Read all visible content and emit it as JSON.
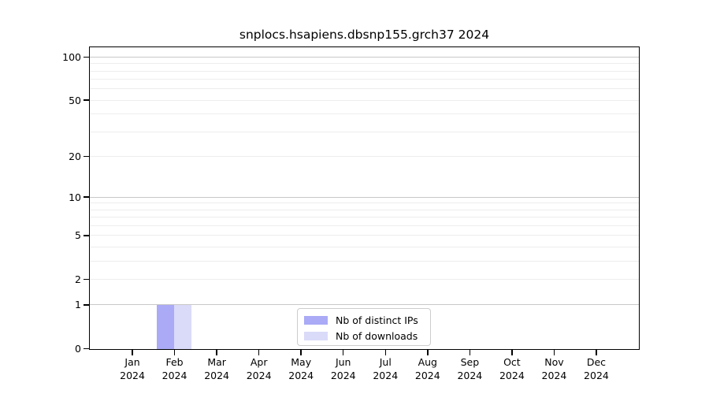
{
  "title": "snplocs.hsapiens.dbsnp155.grch37 2024",
  "chart_data": {
    "type": "bar",
    "title": "snplocs.hsapiens.dbsnp155.grch37 2024",
    "x_categories": [
      {
        "month": "Jan",
        "year": "2024"
      },
      {
        "month": "Feb",
        "year": "2024"
      },
      {
        "month": "Mar",
        "year": "2024"
      },
      {
        "month": "Apr",
        "year": "2024"
      },
      {
        "month": "May",
        "year": "2024"
      },
      {
        "month": "Jun",
        "year": "2024"
      },
      {
        "month": "Jul",
        "year": "2024"
      },
      {
        "month": "Aug",
        "year": "2024"
      },
      {
        "month": "Sep",
        "year": "2024"
      },
      {
        "month": "Oct",
        "year": "2024"
      },
      {
        "month": "Nov",
        "year": "2024"
      },
      {
        "month": "Dec",
        "year": "2024"
      }
    ],
    "series": [
      {
        "name": "Nb of distinct IPs",
        "color": "#aaaaf6",
        "values": [
          0,
          1,
          0,
          0,
          0,
          0,
          0,
          0,
          0,
          0,
          0,
          0
        ]
      },
      {
        "name": "Nb of downloads",
        "color": "#dadaf9",
        "values": [
          0,
          1,
          0,
          0,
          0,
          0,
          0,
          0,
          0,
          0,
          0,
          0
        ]
      }
    ],
    "y_scale": "log1p",
    "y_tick_values": [
      0,
      1,
      2,
      5,
      10,
      20,
      50,
      100
    ],
    "y_grid_major": [
      1,
      10,
      100
    ],
    "y_grid_minor": [
      2,
      3,
      4,
      5,
      6,
      7,
      8,
      9,
      20,
      30,
      40,
      50,
      60,
      70,
      80,
      90
    ],
    "y_axis_max": 116,
    "ylim": [
      0,
      116
    ],
    "grid": true,
    "legend_position": "lower center"
  },
  "legend": {
    "items": [
      {
        "label": "Nb of distinct IPs",
        "color": "#aaaaf6"
      },
      {
        "label": "Nb of downloads",
        "color": "#dadaf9"
      }
    ]
  },
  "colors": {
    "bar_distinct_ips": "#aaaaf6",
    "bar_downloads": "#dadaf9",
    "grid_major": "#c8c8c8",
    "grid_minor": "#ededed",
    "axis_frame": "#000000",
    "legend_border": "#cccccc",
    "background": "#ffffff",
    "text": "#000000"
  }
}
